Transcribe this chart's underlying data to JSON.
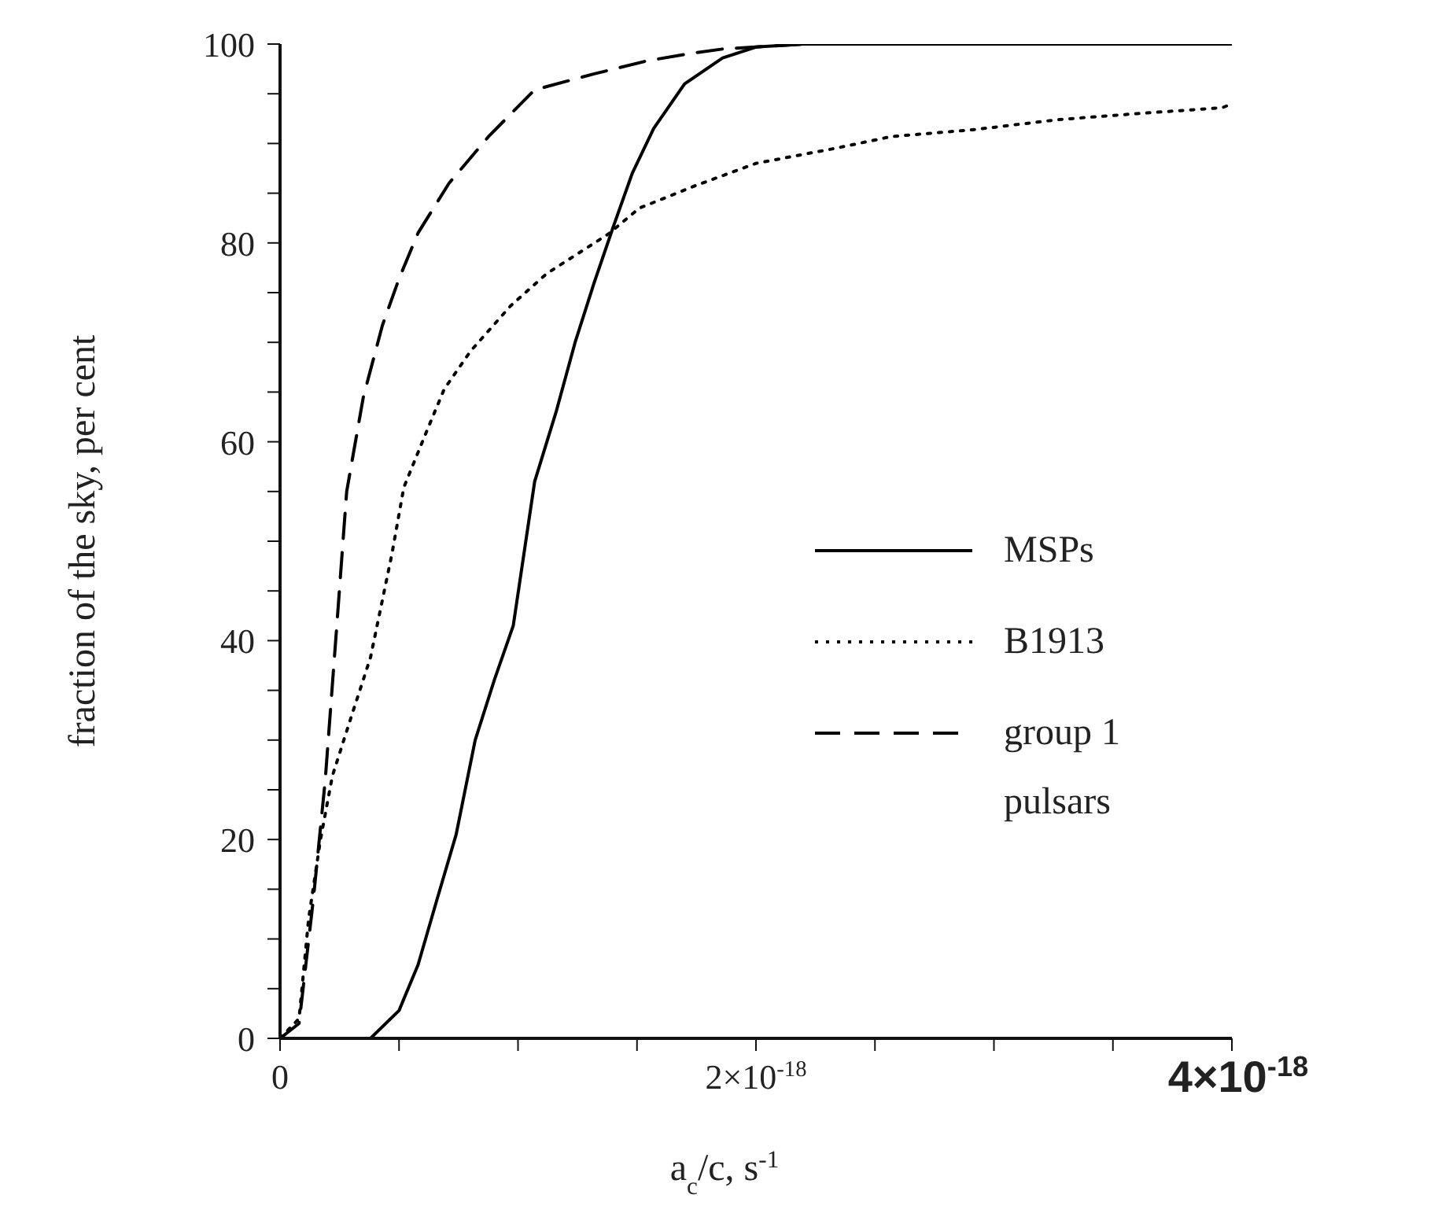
{
  "chart_data": {
    "type": "line",
    "xlabel": "a$_{c}$/c, s$^{-1}$",
    "ylabel": "fraction of the sky, per cent",
    "xlim": [
      0,
      4e-18
    ],
    "xticks": [
      {
        "value": 0,
        "label": "0"
      },
      {
        "value": 5e-19,
        "label": null
      },
      {
        "value": 1e-18,
        "label": null
      },
      {
        "value": 1.5e-18,
        "label": null
      },
      {
        "value": 2e-18,
        "label": "2×10$^{-18}$"
      },
      {
        "value": 2.5e-18,
        "label": null
      },
      {
        "value": 3e-18,
        "label": null
      },
      {
        "value": 3.5e-18,
        "label": null
      },
      {
        "value": 4e-18,
        "label": "4×10$^{-18}$"
      }
    ],
    "ylim": [
      0,
      100
    ],
    "yticks": [
      0,
      {
        "value": 5,
        "label": null
      },
      {
        "value": 10,
        "label": null
      },
      {
        "value": 15,
        "label": null
      },
      20,
      {
        "value": 25,
        "label": null
      },
      {
        "value": 30,
        "label": null
      },
      {
        "value": 35,
        "label": null
      },
      40,
      {
        "value": 45,
        "label": null
      },
      {
        "value": 50,
        "label": null
      },
      {
        "value": 55,
        "label": null
      },
      60,
      {
        "value": 65,
        "label": null
      },
      {
        "value": 70,
        "label": null
      },
      {
        "value": 75,
        "label": null
      },
      80,
      {
        "value": 85,
        "label": null
      },
      {
        "value": 90,
        "label": null
      },
      {
        "value": 95,
        "label": null
      },
      100
    ],
    "grid": false,
    "legend": "right",
    "marker": "none",
    "series": [
      {
        "name": "MSPs",
        "color": "#000000",
        "line_style": "solid",
        "x": [
          3.8e-19,
          5e-19,
          5.8e-19,
          6.6e-19,
          7.4e-19,
          8.2e-19,
          9e-19,
          9.8e-19,
          1.07e-18,
          1.16e-18,
          1.24e-18,
          1.32e-18,
          1.4e-18,
          1.48e-18,
          1.57e-18,
          1.7e-18,
          1.86e-18,
          2e-18,
          2.2e-18,
          4e-18
        ],
        "values": [
          0,
          2.8,
          7.4,
          14,
          20.5,
          30,
          36,
          41.5,
          56,
          63,
          70,
          76,
          81.6,
          87,
          91.5,
          96,
          98.6,
          99.7,
          100,
          100
        ]
      },
      {
        "name": "B1913",
        "color": "#000000",
        "line_style": "dotted",
        "x": [
          0,
          8e-20,
          1.2e-19,
          1.7e-19,
          2.2e-19,
          3e-19,
          3.8e-19,
          4.7e-19,
          5.2e-19,
          6.1e-19,
          6.9e-19,
          8e-19,
          9.7e-19,
          1.12e-18,
          1.38e-18,
          1.51e-18,
          1.75e-18,
          2e-18,
          2.33e-18,
          2.57e-18,
          2.92e-18,
          3.27e-18,
          3.6e-18,
          3.96e-18,
          4e-18
        ],
        "values": [
          0,
          2,
          12,
          20,
          26.4,
          32.4,
          38.3,
          48.7,
          55.4,
          60.7,
          65.3,
          69.1,
          73.7,
          76.9,
          80.9,
          83.5,
          85.8,
          88,
          89.5,
          90.7,
          91.4,
          92.4,
          93,
          93.6,
          94
        ]
      },
      {
        "name": "group 1 pulsars",
        "color": "#000000",
        "line_style": "dashed",
        "x": [
          0,
          8e-20,
          1.4e-19,
          1.9e-19,
          2.4e-19,
          2.8e-19,
          3.5e-19,
          4.3e-19,
          5e-19,
          5.8e-19,
          7.1e-19,
          8.8e-19,
          1.07e-18,
          1.32e-18,
          1.54e-18,
          1.71e-18,
          1.86e-18,
          2.2e-18,
          4e-18
        ],
        "values": [
          0,
          1.5,
          14,
          26,
          42,
          55,
          64.5,
          71.7,
          76.4,
          81,
          86,
          90.8,
          95.4,
          97,
          98.3,
          99,
          99.5,
          100,
          100
        ]
      }
    ]
  }
}
